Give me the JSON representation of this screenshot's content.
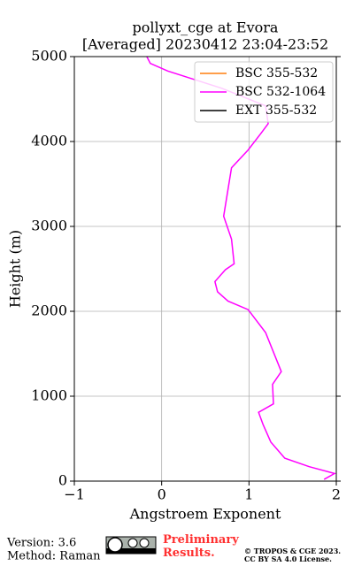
{
  "chart_data": {
    "type": "profile",
    "title": "pollyxt_cge at Evora",
    "subtitle": "[Averaged] 20230412 23:04-23:52",
    "x_label": "Angstroem Exponent",
    "y_label": "Height (m)",
    "xlim": [
      -1,
      2
    ],
    "xticks": [
      {
        "value": -1,
        "label": "−1"
      },
      0,
      1,
      2
    ],
    "ylim": [
      0,
      5000
    ],
    "yticks": [
      0,
      1000,
      2000,
      3000,
      4000,
      5000
    ],
    "grid": true,
    "legend": "upper right",
    "series": [
      {
        "name": "BSC 355-532",
        "color": "#ff7f0e",
        "values": [],
        "heights": []
      },
      {
        "name": "BSC 532-1064",
        "color": "#ff00ff",
        "values": [
          -0.17,
          -0.13,
          0.07,
          0.68,
          1.19,
          1.22,
          1.14,
          0.99,
          0.8,
          0.71,
          0.8,
          0.83,
          0.73,
          0.61,
          0.64,
          0.76,
          0.99,
          1.19,
          1.37,
          1.27,
          1.28,
          1.11,
          1.16,
          1.25,
          1.41,
          1.69,
          1.98,
          1.86
        ],
        "heights": [
          5000,
          4920,
          4830,
          4630,
          4420,
          4210,
          4100,
          3900,
          3690,
          3120,
          2850,
          2560,
          2490,
          2350,
          2230,
          2120,
          2020,
          1750,
          1290,
          1140,
          910,
          810,
          670,
          460,
          270,
          170,
          90,
          20
        ]
      },
      {
        "name": "EXT 355-532",
        "color": "#000000",
        "values": [],
        "heights": []
      }
    ]
  },
  "footer": {
    "version": "Version: 3.6",
    "method": "Method: Raman",
    "preliminary": "Preliminary Results.",
    "copyright": "© TROPOS & CGE 2023.",
    "license": "CC BY SA 4.0 License."
  }
}
